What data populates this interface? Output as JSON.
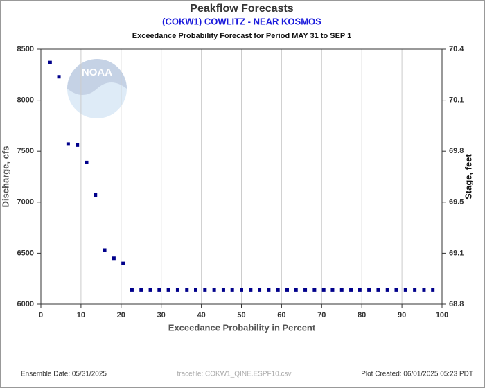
{
  "chart_data": {
    "type": "scatter",
    "title": "Peakflow Forecasts",
    "subtitle": "(COKW1) COWLITZ - NEAR KOSMOS",
    "subtitle2": "Exceedance Probability Forecast for Period MAY 31 to SEP 1",
    "x_label": "Exceedance Probability in Percent",
    "y_label": "Discharge, cfs",
    "y2_label": "Stage, feet",
    "logo_text": "NOAA",
    "footer_left": "Ensemble Date: 05/31/2025",
    "footer_center": "tracefile: COKW1_QINE.ESPF10.csv",
    "footer_right": "Plot Created: 06/01/2025 05:23 PDT",
    "color": "#00008b",
    "grid": true,
    "x": [
      2.3,
      4.5,
      6.8,
      9.1,
      11.4,
      13.6,
      15.9,
      18.2,
      20.5,
      22.7,
      25,
      27.3,
      29.5,
      31.8,
      34.1,
      36.4,
      38.6,
      40.9,
      43.2,
      45.5,
      47.7,
      50,
      52.3,
      54.5,
      56.8,
      59.1,
      61.4,
      63.6,
      65.9,
      68.2,
      70.5,
      72.7,
      75,
      77.3,
      79.5,
      81.8,
      84.1,
      86.4,
      88.6,
      90.9,
      93.2,
      95.5,
      97.7
    ],
    "values": [
      8370,
      8230,
      7570,
      7560,
      7390,
      7070,
      6530,
      6450,
      6400,
      6140,
      6140,
      6140,
      6140,
      6140,
      6140,
      6140,
      6140,
      6140,
      6140,
      6140,
      6140,
      6140,
      6140,
      6140,
      6140,
      6140,
      6140,
      6140,
      6140,
      6140,
      6140,
      6140,
      6140,
      6140,
      6140,
      6140,
      6140,
      6140,
      6140,
      6140,
      6140,
      6140,
      6140
    ],
    "xlim": [
      0,
      100
    ],
    "xticks": [
      0,
      10,
      20,
      30,
      40,
      50,
      60,
      70,
      80,
      90,
      100
    ],
    "ylim": [
      6000,
      8500
    ],
    "yticks": [
      6000,
      6500,
      7000,
      7500,
      8000,
      8500
    ],
    "y2lim": [
      68.8,
      70.4
    ],
    "y2ticks": [
      68.8,
      69.1,
      69.5,
      69.8,
      70.1,
      70.4
    ]
  }
}
